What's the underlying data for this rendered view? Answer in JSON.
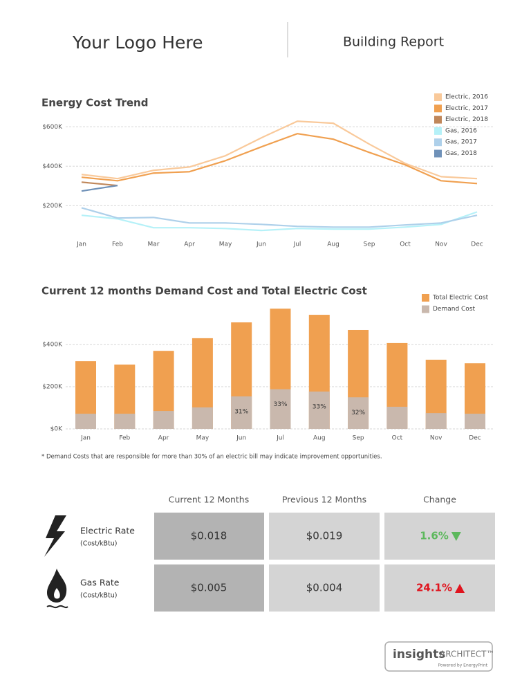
{
  "header": {
    "logo": "Your Logo Here",
    "title": "Building Report"
  },
  "chart_data": [
    {
      "type": "line",
      "title": "Energy Cost Trend",
      "categories": [
        "Jan",
        "Feb",
        "Mar",
        "Apr",
        "May",
        "Jun",
        "Jul",
        "Aug",
        "Sep",
        "Oct",
        "Nov",
        "Dec"
      ],
      "series": [
        {
          "name": "Electric, 2016",
          "color": "#f9c99a",
          "values": [
            358000,
            337000,
            379000,
            396000,
            453000,
            544000,
            628000,
            618000,
            512000,
            414000,
            347000,
            337000
          ]
        },
        {
          "name": "Electric, 2017",
          "color": "#f0a050",
          "values": [
            344000,
            326000,
            365000,
            372000,
            428000,
            498000,
            565000,
            537000,
            470000,
            407000,
            326000,
            312000
          ]
        },
        {
          "name": "Electric, 2018",
          "color": "#c0875a",
          "values": [
            319000,
            302000,
            null,
            null,
            null,
            null,
            null,
            null,
            null,
            null,
            null,
            null
          ]
        },
        {
          "name": "Gas, 2016",
          "color": "#b5f1f8",
          "values": [
            151000,
            133000,
            88000,
            88000,
            84000,
            74000,
            84000,
            81000,
            81000,
            91000,
            105000,
            168000
          ]
        },
        {
          "name": "Gas, 2017",
          "color": "#aed0ea",
          "values": [
            189000,
            137000,
            140000,
            112000,
            112000,
            105000,
            95000,
            91000,
            91000,
            102000,
            112000,
            151000
          ]
        },
        {
          "name": "Gas, 2018",
          "color": "#6f91b8",
          "values": [
            274000,
            302000,
            null,
            null,
            null,
            null,
            null,
            null,
            null,
            null,
            null,
            null
          ]
        }
      ],
      "ylim": [
        50000,
        650000
      ],
      "yticks": [
        {
          "value": 200000,
          "label": "$200K"
        },
        {
          "value": 400000,
          "label": "$400K"
        },
        {
          "value": 600000,
          "label": "$600K"
        }
      ],
      "grid": true,
      "legend": "top-right"
    },
    {
      "type": "bar",
      "title": "Current 12 months Demand Cost and Total Electric Cost",
      "categories": [
        "Jan",
        "Feb",
        "Apr",
        "May",
        "Jun",
        "Jul",
        "Aug",
        "Sep",
        "Oct",
        "Nov",
        "Dec"
      ],
      "series": [
        {
          "name": "Total Electric Cost",
          "color": "#f0a050",
          "values": [
            321000,
            305000,
            370000,
            430000,
            505000,
            570000,
            541000,
            469000,
            407000,
            328000,
            311000
          ]
        },
        {
          "name": "Demand Cost",
          "color": "#c9b8ad",
          "values": [
            72000,
            72000,
            85000,
            102000,
            154000,
            188000,
            177000,
            150000,
            105000,
            75000,
            72000
          ]
        }
      ],
      "share": {
        "values": [
          null,
          null,
          null,
          null,
          31,
          33,
          33,
          32,
          null,
          null,
          null
        ],
        "value_labels": [
          null,
          null,
          null,
          null,
          "31%",
          "33%",
          "33%",
          "32%",
          null,
          null,
          null
        ]
      },
      "ylim": [
        0,
        610000
      ],
      "yticks": [
        {
          "value": 0,
          "label": "$0K"
        },
        {
          "value": 200000,
          "label": "$200K"
        },
        {
          "value": 400000,
          "label": "$400K"
        }
      ],
      "grid": true,
      "legend": "top-right"
    }
  ],
  "footnote": "* Demand Costs that are responsible for more than 30% of an electric bill may indicate improvement opportunities.",
  "rates": {
    "columns": [
      "Current 12 Months",
      "Previous 12 Months",
      "Change"
    ],
    "rows": [
      {
        "label": "Electric Rate",
        "unit": "(Cost/kBtu)",
        "current": "$0.018",
        "previous": "$0.019",
        "change": "1.6%",
        "direction": "down",
        "color": "#5cb85c"
      },
      {
        "label": "Gas Rate",
        "unit": "(Cost/kBtu)",
        "current": "$0.005",
        "previous": "$0.004",
        "change": "24.1%",
        "direction": "up",
        "color": "#e0141e"
      }
    ]
  },
  "footer": {
    "brand": "insights",
    "brand2": "ARCHITECT™",
    "tagline": "Powered by EnergyPrint"
  }
}
